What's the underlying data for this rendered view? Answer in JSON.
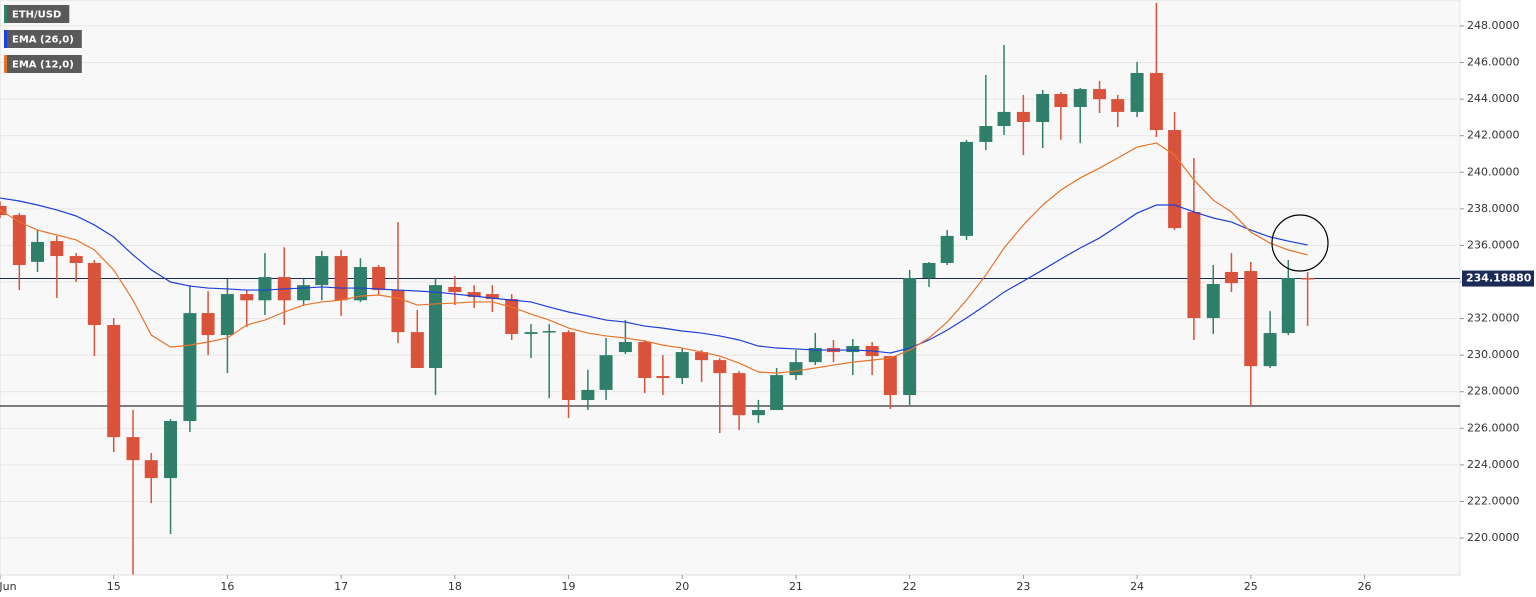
{
  "chart_data": {
    "type": "candlestick",
    "x": [
      14,
      14.17,
      14.33,
      14.5,
      14.67,
      14.83,
      15,
      15.17,
      15.33,
      15.5,
      15.67,
      15.83,
      16,
      16.17,
      16.33,
      16.5,
      16.67,
      16.83,
      17,
      17.17,
      17.33,
      17.5,
      17.67,
      17.83,
      18,
      18.17,
      18.33,
      18.5,
      18.67,
      18.83,
      19,
      19.17,
      19.33,
      19.5,
      19.67,
      19.83,
      20,
      20.17,
      20.33,
      20.5,
      20.67,
      20.83,
      21,
      21.17,
      21.33,
      21.5,
      21.67,
      21.83,
      22,
      22.17,
      22.33,
      22.5,
      22.67,
      22.83,
      23,
      23.17,
      23.33,
      23.5,
      23.67,
      23.83,
      24,
      24.17,
      24.33,
      24.5,
      24.67,
      24.83,
      25,
      25.17,
      25.33,
      25.5
    ],
    "xlim": [
      14,
      26.84
    ],
    "xticks": [
      {
        "value": 14,
        "label": "Jun"
      },
      15,
      16,
      17,
      18,
      19,
      20,
      21,
      22,
      23,
      24,
      25,
      26
    ],
    "ylim": [
      217.98,
      249.42
    ],
    "yticks": [
      {
        "value": 220,
        "label": "220.0000"
      },
      {
        "value": 222,
        "label": "222.0000"
      },
      {
        "value": 224,
        "label": "224.0000"
      },
      {
        "value": 226,
        "label": "226.0000"
      },
      {
        "value": 228,
        "label": "228.0000"
      },
      {
        "value": 230,
        "label": "230.0000"
      },
      {
        "value": 232,
        "label": "232.0000"
      },
      {
        "value": 234,
        "label": "234.0000"
      },
      {
        "value": 236,
        "label": "236.0000"
      },
      {
        "value": 238,
        "label": "238.0000"
      },
      {
        "value": 240,
        "label": "240.0000"
      },
      {
        "value": 242,
        "label": "242.0000"
      },
      {
        "value": 244,
        "label": "244.0000"
      },
      {
        "value": 246,
        "label": "246.0000"
      },
      {
        "value": 248,
        "label": "248.0000"
      }
    ],
    "grid": true,
    "legend": "top-left",
    "candles": {
      "name": "ETH/USD",
      "up_color": "#2f7f6a",
      "down_color": "#d9533c",
      "open": [
        238.16,
        237.66,
        235.1,
        236.24,
        235.42,
        235.04,
        231.65,
        225.52,
        224.26,
        223.28,
        226.4,
        232.3,
        231.1,
        233.34,
        233.0,
        234.27,
        233.0,
        233.83,
        235.42,
        233.0,
        234.82,
        233.56,
        231.26,
        229.3,
        233.73,
        233.45,
        233.34,
        233.07,
        231.16,
        231.3,
        231.26,
        227.55,
        228.1,
        230.17,
        230.72,
        228.86,
        228.75,
        230.17,
        229.73,
        229.02,
        226.72,
        227.0,
        228.91,
        229.62,
        230.39,
        230.17,
        230.5,
        229.95,
        227.82,
        234.22,
        235.04,
        236.52,
        241.66,
        242.53,
        243.3,
        242.75,
        244.28,
        243.57,
        244.55,
        244.0,
        243.3,
        245.43,
        242.31,
        237.83,
        232.03,
        234.55,
        234.6,
        229.4,
        231.21,
        234.22
      ],
      "high": [
        238.4,
        237.77,
        236.84,
        236.52,
        235.58,
        235.2,
        232.03,
        227.0,
        224.65,
        226.51,
        233.83,
        233.5,
        234.16,
        233.56,
        235.58,
        235.9,
        234.2,
        235.7,
        235.75,
        235.3,
        234.93,
        237.28,
        232.47,
        234.2,
        234.33,
        233.83,
        233.83,
        233.34,
        231.7,
        231.7,
        231.37,
        229.2,
        230.94,
        231.92,
        230.83,
        230.0,
        230.39,
        230.28,
        229.84,
        229.13,
        227.55,
        229.3,
        230.28,
        231.21,
        230.83,
        230.88,
        230.72,
        229.95,
        234.66,
        235.1,
        236.84,
        241.77,
        245.32,
        246.96,
        244.23,
        244.5,
        244.39,
        244.61,
        244.99,
        244.23,
        246.03,
        249.26,
        243.3,
        240.78,
        234.93,
        235.58,
        235.1,
        232.41,
        235.2,
        234.55
      ],
      "low": [
        237.5,
        233.56,
        234.55,
        233.13,
        234.0,
        229.95,
        224.7,
        218.0,
        221.91,
        220.22,
        225.8,
        230.0,
        229.02,
        231.54,
        232.2,
        231.65,
        232.7,
        233.0,
        232.14,
        232.9,
        233.29,
        230.66,
        229.3,
        227.82,
        232.74,
        232.58,
        232.36,
        230.83,
        229.84,
        227.65,
        226.56,
        227.0,
        227.55,
        230.06,
        227.93,
        227.82,
        228.42,
        228.53,
        225.74,
        225.91,
        226.29,
        227.0,
        228.64,
        229.46,
        229.62,
        228.91,
        228.91,
        227.06,
        227.28,
        233.73,
        234.93,
        236.3,
        241.22,
        242.04,
        240.94,
        241.33,
        241.77,
        241.6,
        243.24,
        242.48,
        243.02,
        241.93,
        236.84,
        230.83,
        231.16,
        233.45,
        227.22,
        229.3,
        231.1,
        231.6
      ],
      "close": [
        237.66,
        234.93,
        236.19,
        235.42,
        235.04,
        231.65,
        225.52,
        224.26,
        223.28,
        226.4,
        232.3,
        231.1,
        233.34,
        233.0,
        234.27,
        233.0,
        233.83,
        235.42,
        233.0,
        234.82,
        233.56,
        231.26,
        229.3,
        233.83,
        233.45,
        233.18,
        233.07,
        231.16,
        231.26,
        231.32,
        227.55,
        228.1,
        230.0,
        230.72,
        228.75,
        228.75,
        230.17,
        229.73,
        229.02,
        226.72,
        227.0,
        228.91,
        229.62,
        230.39,
        230.17,
        230.5,
        229.95,
        227.82,
        234.22,
        235.04,
        236.52,
        241.66,
        242.53,
        243.3,
        242.75,
        244.28,
        243.57,
        244.55,
        244.0,
        243.3,
        245.43,
        242.31,
        236.95,
        232.03,
        233.89,
        233.94,
        229.4,
        231.21,
        234.22,
        234.19
      ]
    },
    "series": [
      {
        "name": "EMA (26,0)",
        "color": "#1f3fd8",
        "values": [
          238.59,
          238.43,
          238.21,
          237.94,
          237.61,
          237.12,
          236.46,
          235.48,
          234.66,
          234.0,
          233.78,
          233.67,
          233.62,
          233.56,
          233.56,
          233.62,
          233.67,
          233.73,
          233.67,
          233.67,
          233.62,
          233.56,
          233.51,
          233.45,
          233.34,
          233.23,
          233.12,
          233.01,
          232.91,
          232.63,
          232.36,
          232.14,
          231.92,
          231.81,
          231.59,
          231.48,
          231.32,
          231.21,
          231.05,
          230.83,
          230.5,
          230.39,
          230.34,
          230.28,
          230.28,
          230.28,
          230.23,
          230.12,
          230.39,
          230.83,
          231.37,
          232.03,
          232.74,
          233.45,
          234.05,
          234.66,
          235.26,
          235.86,
          236.41,
          237.06,
          237.77,
          238.21,
          238.21,
          237.83,
          237.5,
          237.28,
          236.84,
          236.46,
          236.24,
          236.02
        ]
      },
      {
        "name": "EMA (12,0)",
        "color": "#e8742a",
        "values": [
          237.94,
          237.28,
          236.84,
          236.57,
          236.3,
          235.75,
          234.66,
          233.01,
          231.1,
          230.44,
          230.55,
          230.72,
          230.94,
          231.65,
          231.92,
          232.36,
          232.74,
          232.91,
          233.01,
          233.23,
          233.29,
          233.12,
          232.74,
          232.8,
          232.85,
          232.91,
          232.91,
          232.63,
          232.25,
          231.92,
          231.48,
          231.21,
          231.05,
          230.94,
          230.77,
          230.55,
          230.39,
          230.17,
          229.95,
          229.57,
          229.08,
          229.02,
          229.13,
          229.3,
          229.46,
          229.62,
          229.73,
          229.84,
          230.28,
          230.94,
          231.81,
          233.01,
          234.38,
          235.86,
          237.12,
          238.21,
          239.03,
          239.69,
          240.23,
          240.78,
          241.38,
          241.6,
          240.94,
          239.58,
          238.48,
          237.83,
          236.73,
          236.13,
          235.75,
          235.48
        ]
      }
    ],
    "price_line": {
      "value": 234.1888,
      "label": "234.18880",
      "color": "#1b2a57"
    },
    "support_line": {
      "value": 227.22,
      "color": "#000000"
    }
  }
}
